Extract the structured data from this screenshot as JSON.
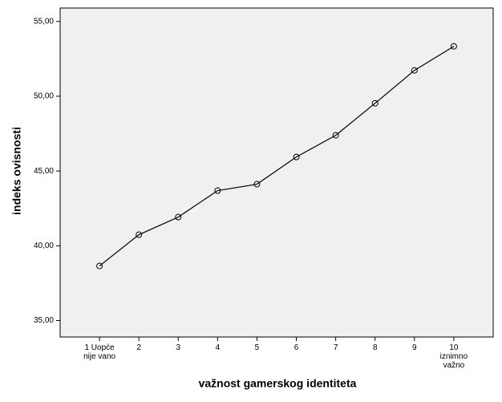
{
  "chart_data": {
    "type": "line",
    "x_label": "važnost gamerskog identiteta",
    "y_label": "indeks ovisnosti",
    "categories": [
      "1 Uopće\nnije vano",
      "2",
      "3",
      "4",
      "5",
      "6",
      "7",
      "8",
      "9",
      "10\niznimno\nvažno"
    ],
    "values": [
      38.65,
      40.74,
      41.92,
      43.69,
      44.12,
      45.94,
      47.39,
      49.53,
      51.73,
      53.34
    ],
    "color": "#000000",
    "ylim": [
      33.9,
      55.9
    ],
    "yticks": [
      {
        "value": 35,
        "label": "35,00"
      },
      {
        "value": 40,
        "label": "40,00"
      },
      {
        "value": 45,
        "label": "45,00"
      },
      {
        "value": 50,
        "label": "50,00"
      },
      {
        "value": 55,
        "label": "55,00"
      }
    ]
  }
}
